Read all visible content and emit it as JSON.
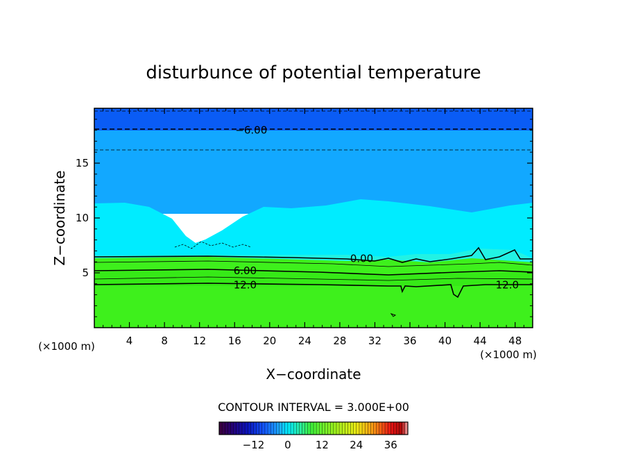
{
  "chart_data": {
    "type": "heatmap",
    "title": "disturbunce of potential temperature",
    "xlabel": "X−coordinate",
    "ylabel": "Z−coordinate",
    "x_unit_left": "(×1000 m)",
    "x_unit_right": "(×1000 m)",
    "xlim": [
      0,
      50
    ],
    "ylim": [
      0,
      20
    ],
    "x_ticks": [
      4,
      8,
      12,
      16,
      20,
      24,
      28,
      32,
      36,
      40,
      44,
      48
    ],
    "y_ticks": [
      5,
      10,
      15
    ],
    "contour_interval_text": "CONTOUR INTERVAL = 3.000E+00",
    "contour_labels": [
      {
        "text": "−6.00",
        "x": 17.9,
        "z": 18.0
      },
      {
        "text": "0.00",
        "x": 30.5,
        "z": 6.3
      },
      {
        "text": "6.00",
        "x": 17.2,
        "z": 5.2
      },
      {
        "text": "12.0",
        "x": 17.2,
        "z": 3.9
      },
      {
        "text": "12.0",
        "x": 47.1,
        "z": 3.9
      }
    ],
    "colorbar": {
      "min": -24,
      "max": 42,
      "ticks": [
        -12,
        0,
        12,
        24,
        36
      ],
      "tick_labels": [
        "−12",
        "0",
        "12",
        "24",
        "36"
      ]
    },
    "colors": {
      "top_band": "#0a5cf5",
      "upper_region": "#12a8ff",
      "mid_region": "#00ecff",
      "cyan_transition": "#22f2e4",
      "low_region": "#3ef01c"
    },
    "grid": false,
    "legend": "colorbar-bottom"
  }
}
